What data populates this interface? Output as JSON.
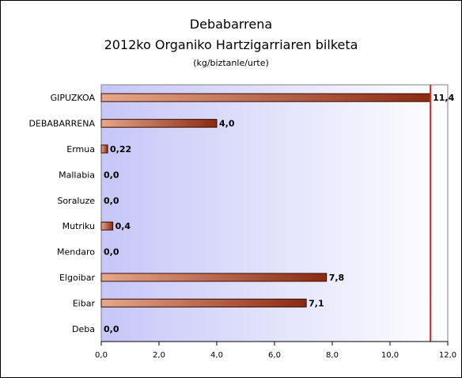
{
  "chart_data": {
    "type": "bar",
    "orientation": "horizontal",
    "title": "Debabarrena",
    "subtitle": "2012ko Organiko Hartzigarriaren bilketa",
    "unit_label": "(kg/biztanle/urte)",
    "categories": [
      "GIPUZKOA",
      "DEBABARRENA",
      "Ermua",
      "Mallabia",
      "Soraluze",
      "Mutriku",
      "Mendaro",
      "Elgoibar",
      "Eibar",
      "Deba"
    ],
    "values": [
      11.4,
      4.0,
      0.22,
      0.0,
      0.0,
      0.4,
      0.0,
      7.8,
      7.1,
      0.0
    ],
    "value_labels": [
      "11,4",
      "4,0",
      "0,22",
      "0,0",
      "0,0",
      "0,4",
      "0,0",
      "7,8",
      "7,1",
      "0,0"
    ],
    "xlim": [
      0,
      12
    ],
    "x_ticks": [
      "0,0",
      "2,0",
      "4,0",
      "6,0",
      "8,0",
      "10,0",
      "12,0"
    ],
    "reference_line": 11.4,
    "colors": {
      "bar_light": "#e6a78a",
      "bar_dark": "#8b2a12",
      "bar_border": "#3a0d04",
      "plot_bg_left": "#c6c6f8",
      "plot_bg_right": "#ffffff",
      "reference_line": "#d62b2b"
    },
    "grid": false,
    "legend": "none"
  }
}
